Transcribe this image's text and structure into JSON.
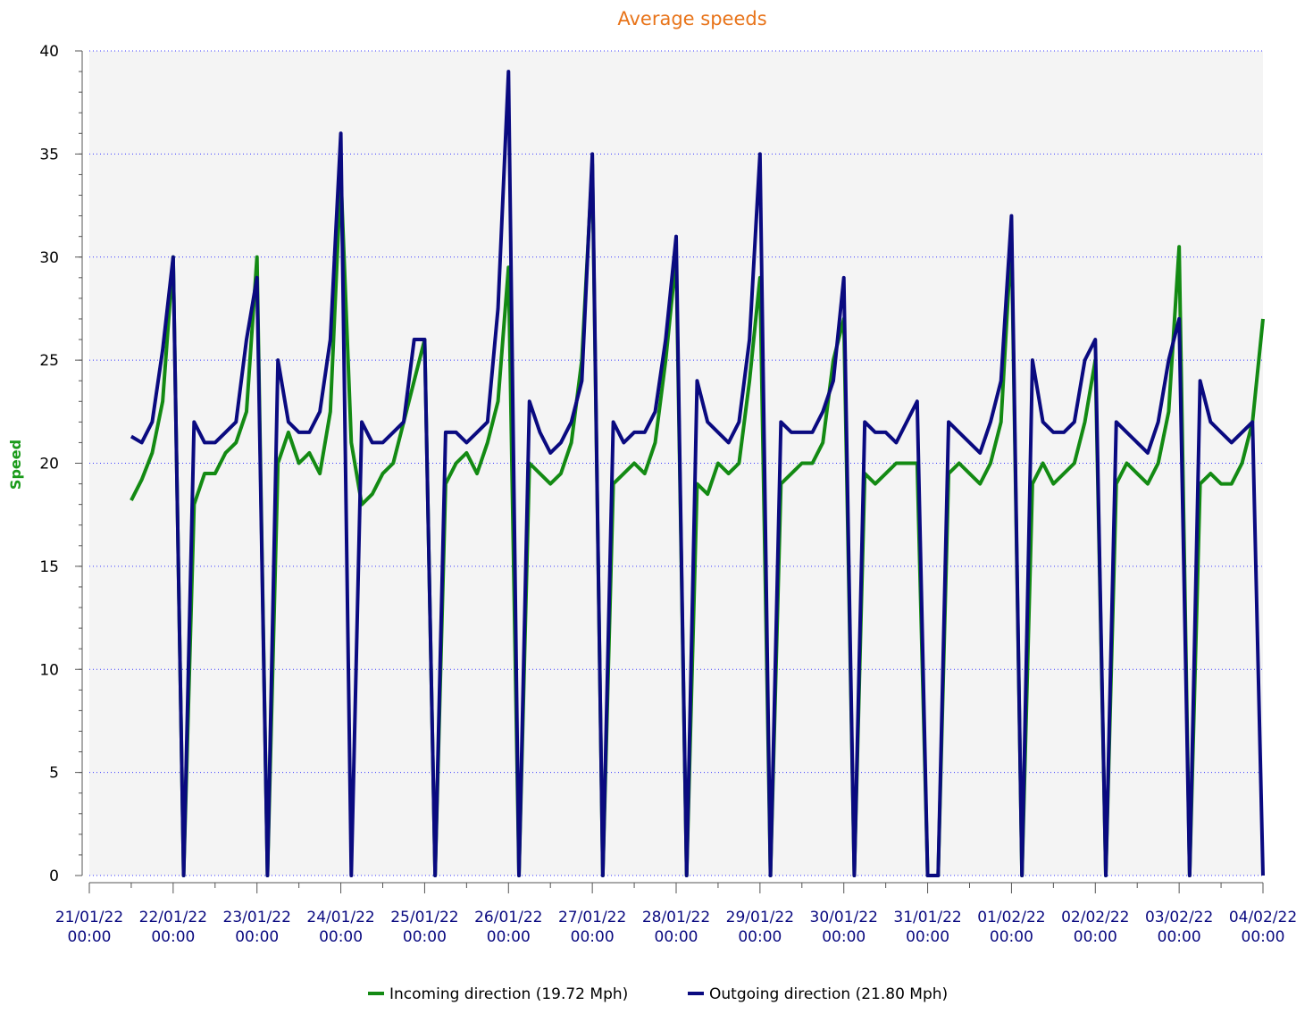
{
  "chart_data": {
    "type": "line",
    "title": "Average speeds",
    "y_label": "Speed",
    "x": [
      "21/01/22 12:00",
      "21/01/22 15:00",
      "21/01/22 18:00",
      "21/01/22 21:00",
      "22/01/22 00:00",
      "22/01/22 03:00",
      "22/01/22 06:00",
      "22/01/22 09:00",
      "22/01/22 12:00",
      "22/01/22 15:00",
      "22/01/22 18:00",
      "22/01/22 21:00",
      "23/01/22 00:00",
      "23/01/22 03:00",
      "23/01/22 06:00",
      "23/01/22 09:00",
      "23/01/22 12:00",
      "23/01/22 15:00",
      "23/01/22 18:00",
      "23/01/22 21:00",
      "24/01/22 00:00",
      "24/01/22 03:00",
      "24/01/22 06:00",
      "24/01/22 09:00",
      "24/01/22 12:00",
      "24/01/22 15:00",
      "24/01/22 18:00",
      "24/01/22 21:00",
      "25/01/22 00:00",
      "25/01/22 03:00",
      "25/01/22 06:00",
      "25/01/22 09:00",
      "25/01/22 12:00",
      "25/01/22 15:00",
      "25/01/22 18:00",
      "25/01/22 21:00",
      "26/01/22 00:00",
      "26/01/22 03:00",
      "26/01/22 06:00",
      "26/01/22 09:00",
      "26/01/22 12:00",
      "26/01/22 15:00",
      "26/01/22 18:00",
      "26/01/22 21:00",
      "27/01/22 00:00",
      "27/01/22 03:00",
      "27/01/22 06:00",
      "27/01/22 09:00",
      "27/01/22 12:00",
      "27/01/22 15:00",
      "27/01/22 18:00",
      "27/01/22 21:00",
      "28/01/22 00:00",
      "28/01/22 03:00",
      "28/01/22 06:00",
      "28/01/22 09:00",
      "28/01/22 12:00",
      "28/01/22 15:00",
      "28/01/22 18:00",
      "28/01/22 21:00",
      "29/01/22 00:00",
      "29/01/22 03:00",
      "29/01/22 06:00",
      "29/01/22 09:00",
      "29/01/22 12:00",
      "29/01/22 15:00",
      "29/01/22 18:00",
      "29/01/22 21:00",
      "30/01/22 00:00",
      "30/01/22 03:00",
      "30/01/22 06:00",
      "30/01/22 09:00",
      "30/01/22 12:00",
      "30/01/22 15:00",
      "30/01/22 18:00",
      "30/01/22 21:00",
      "31/01/22 00:00",
      "31/01/22 03:00",
      "31/01/22 06:00",
      "31/01/22 09:00",
      "31/01/22 12:00",
      "31/01/22 15:00",
      "31/01/22 18:00",
      "31/01/22 21:00",
      "01/02/22 00:00",
      "01/02/22 03:00",
      "01/02/22 06:00",
      "01/02/22 09:00",
      "01/02/22 12:00",
      "01/02/22 15:00",
      "01/02/22 18:00",
      "01/02/22 21:00",
      "02/02/22 00:00",
      "02/02/22 03:00",
      "02/02/22 06:00",
      "02/02/22 09:00",
      "02/02/22 12:00",
      "02/02/22 15:00",
      "02/02/22 18:00",
      "02/02/22 21:00",
      "03/02/22 00:00",
      "03/02/22 03:00",
      "03/02/22 06:00",
      "03/02/22 09:00",
      "03/02/22 12:00",
      "03/02/22 15:00",
      "03/02/22 18:00",
      "03/02/22 21:00",
      "04/02/22 00:00"
    ],
    "series": [
      {
        "name": "Incoming direction (19.72 Mph)",
        "color": "#138a13",
        "values": [
          18.2,
          19.2,
          20.5,
          23,
          30,
          0,
          18,
          19.5,
          19.5,
          20.5,
          21,
          22.5,
          30,
          0,
          20,
          21.5,
          20,
          20.5,
          19.5,
          22.5,
          34,
          21,
          18,
          18.5,
          19.5,
          20,
          22,
          24,
          26,
          0,
          19,
          20,
          20.5,
          19.5,
          21,
          23,
          29.5,
          0,
          20,
          19.5,
          19,
          19.5,
          21,
          25,
          34.5,
          0,
          19,
          19.5,
          20,
          19.5,
          21,
          25,
          30,
          0,
          19,
          18.5,
          20,
          19.5,
          20,
          24,
          29,
          0,
          19,
          19.5,
          20,
          20,
          21,
          25,
          27,
          0,
          19.5,
          19,
          19.5,
          20,
          20,
          20,
          0,
          0,
          19.5,
          20,
          19.5,
          19,
          20,
          22,
          31,
          0,
          19,
          20,
          19,
          19.5,
          20,
          22,
          25,
          0,
          19,
          20,
          19.5,
          19,
          20,
          22.5,
          30.5,
          0,
          19,
          19.5,
          19,
          19,
          20,
          22,
          27
        ]
      },
      {
        "name": "Outgoing direction (21.80 Mph)",
        "color": "#0a0a80",
        "values": [
          21.3,
          21,
          22,
          25.5,
          30,
          0,
          22,
          21,
          21,
          21.5,
          22,
          26,
          29,
          0,
          25,
          22,
          21.5,
          21.5,
          22.5,
          26,
          36,
          0,
          22,
          21,
          21,
          21.5,
          22,
          26,
          26,
          0,
          21.5,
          21.5,
          21,
          21.5,
          22,
          27.5,
          39,
          0,
          23,
          21.5,
          20.5,
          21,
          22,
          24,
          35,
          0,
          22,
          21,
          21.5,
          21.5,
          22.5,
          26,
          31,
          0,
          24,
          22,
          21.5,
          21,
          22,
          26,
          35,
          0,
          22,
          21.5,
          21.5,
          21.5,
          22.5,
          24,
          29,
          0,
          22,
          21.5,
          21.5,
          21,
          22,
          23,
          0,
          0,
          22,
          21.5,
          21,
          20.5,
          22,
          24,
          32,
          0,
          25,
          22,
          21.5,
          21.5,
          22,
          25,
          26,
          0,
          22,
          21.5,
          21,
          20.5,
          22,
          25,
          27,
          0,
          24,
          22,
          21.5,
          21,
          21.5,
          22,
          0
        ]
      }
    ],
    "xlim": [
      "21/01/22 00:00",
      "04/02/22 00:00"
    ],
    "xticks": [
      "21/01/22 00:00",
      "22/01/22 00:00",
      "23/01/22 00:00",
      "24/01/22 00:00",
      "25/01/22 00:00",
      "26/01/22 00:00",
      "27/01/22 00:00",
      "28/01/22 00:00",
      "29/01/22 00:00",
      "30/01/22 00:00",
      "31/01/22 00:00",
      "01/02/22 00:00",
      "02/02/22 00:00",
      "03/02/22 00:00",
      "04/02/22 00:00"
    ],
    "ylim": [
      0,
      40
    ],
    "yticks": [
      0,
      5,
      10,
      15,
      20,
      25,
      30,
      35,
      40
    ],
    "grid": true
  }
}
